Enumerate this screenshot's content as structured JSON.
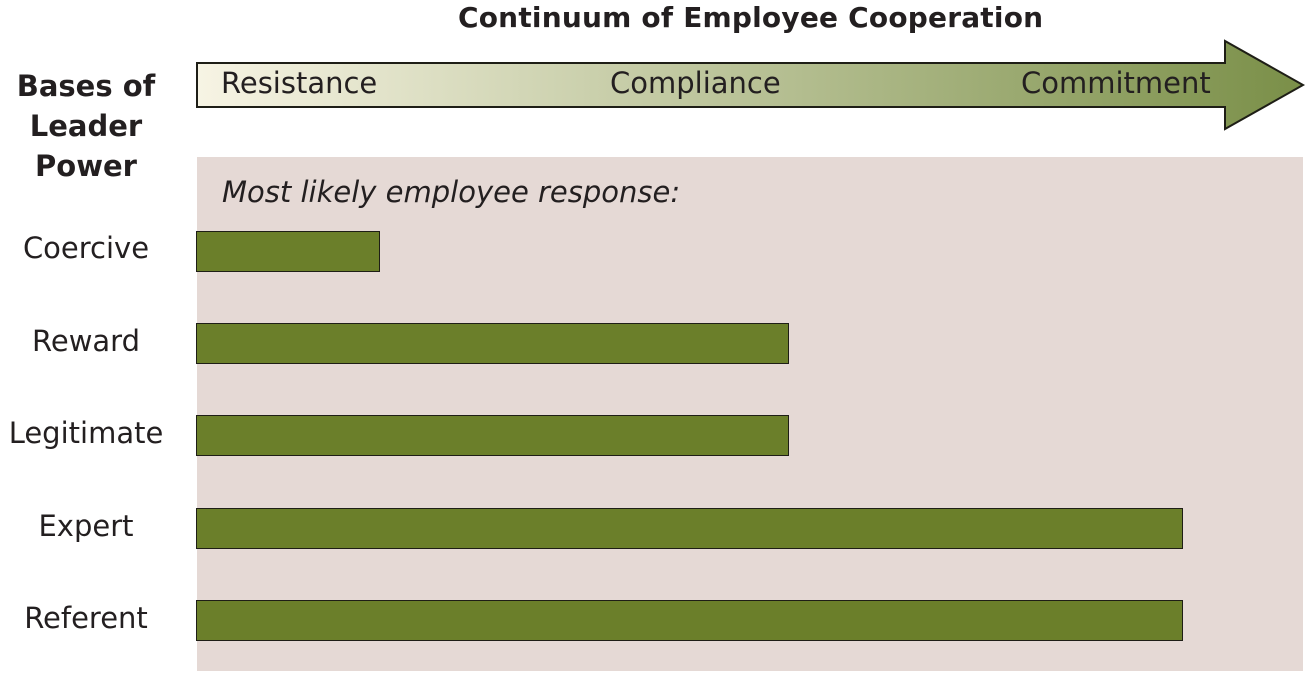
{
  "title": "Continuum of Employee Cooperation",
  "left_heading": [
    "Bases of",
    "Leader",
    "Power"
  ],
  "continuum": {
    "labels": [
      "Resistance",
      "Compliance",
      "Commitment"
    ],
    "colors": {
      "start": "#f7f4e4",
      "end": "#7a8f48",
      "border": "#1e1e16"
    }
  },
  "panel": {
    "caption": "Most likely employee response:",
    "color": "#e5d9d5"
  },
  "bar_color": "#6b7f2a",
  "rows": [
    {
      "label": "Coercive",
      "response": "Resistance",
      "extent": 0.186
    },
    {
      "label": "Reward",
      "response": "Compliance",
      "extent": 0.601
    },
    {
      "label": "Legitimate",
      "response": "Compliance",
      "extent": 0.601
    },
    {
      "label": "Expert",
      "response": "Commitment",
      "extent": 1.0
    },
    {
      "label": "Referent",
      "response": "Commitment",
      "extent": 1.0
    }
  ]
}
